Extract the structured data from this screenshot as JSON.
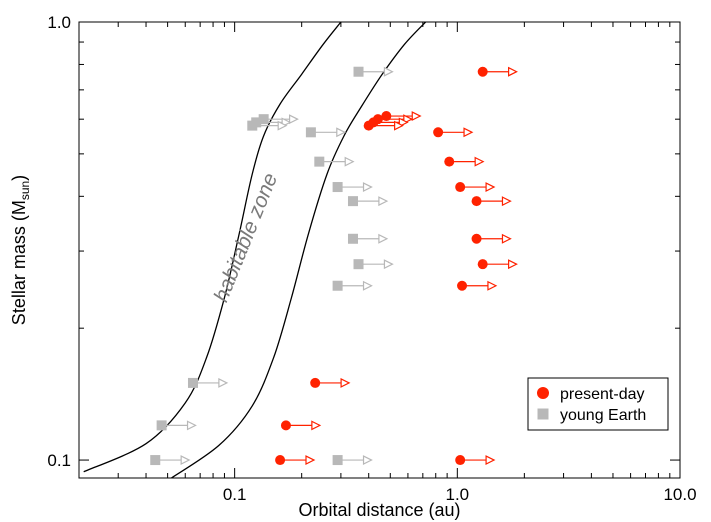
{
  "chart_data": {
    "type": "scatter",
    "xlabel": "Orbital distance (au)",
    "ylabel_main": "Stellar mass (M",
    "ylabel_sub": "sun",
    "ylabel_close": ")",
    "x_scale": "log",
    "y_scale": "log",
    "xlim": [
      0.02,
      10.0
    ],
    "ylim": [
      0.091,
      1.0
    ],
    "x_ticks": [
      0.1,
      1.0,
      10.0
    ],
    "x_tick_labels": [
      "0.1",
      "1.0",
      "10.0"
    ],
    "y_ticks": [
      0.1,
      1.0
    ],
    "y_tick_labels": [
      "0.1",
      "1.0"
    ],
    "annotation": "habitable zone",
    "legend_position": "bottom-right",
    "colors": {
      "present": "#ff2200",
      "young": "#b8b8b8",
      "curve": "#000000"
    },
    "habitable_zone": {
      "inner_edge": [
        [
          0.021,
          0.094
        ],
        [
          0.04,
          0.109
        ],
        [
          0.06,
          0.135
        ],
        [
          0.075,
          0.172
        ],
        [
          0.09,
          0.235
        ],
        [
          0.105,
          0.33
        ],
        [
          0.12,
          0.45
        ],
        [
          0.135,
          0.55
        ],
        [
          0.16,
          0.65
        ],
        [
          0.2,
          0.76
        ],
        [
          0.25,
          0.89
        ],
        [
          0.3,
          1.0
        ]
      ],
      "outer_edge": [
        [
          0.052,
          0.091
        ],
        [
          0.085,
          0.108
        ],
        [
          0.12,
          0.133
        ],
        [
          0.15,
          0.172
        ],
        [
          0.18,
          0.235
        ],
        [
          0.215,
          0.33
        ],
        [
          0.26,
          0.45
        ],
        [
          0.31,
          0.55
        ],
        [
          0.37,
          0.64
        ],
        [
          0.46,
          0.76
        ],
        [
          0.58,
          0.89
        ],
        [
          0.72,
          1.0
        ]
      ]
    },
    "series": [
      {
        "name": "present-day",
        "marker": "circle",
        "points": [
          {
            "x": 1.3,
            "y": 0.77
          },
          {
            "x": 0.48,
            "y": 0.61
          },
          {
            "x": 0.44,
            "y": 0.6
          },
          {
            "x": 0.42,
            "y": 0.59
          },
          {
            "x": 0.4,
            "y": 0.58
          },
          {
            "x": 0.82,
            "y": 0.56
          },
          {
            "x": 0.92,
            "y": 0.48
          },
          {
            "x": 1.03,
            "y": 0.42
          },
          {
            "x": 1.22,
            "y": 0.39
          },
          {
            "x": 1.22,
            "y": 0.32
          },
          {
            "x": 1.3,
            "y": 0.28
          },
          {
            "x": 1.05,
            "y": 0.25
          },
          {
            "x": 0.23,
            "y": 0.15
          },
          {
            "x": 0.17,
            "y": 0.12
          },
          {
            "x": 0.16,
            "y": 0.1
          },
          {
            "x": 1.03,
            "y": 0.1
          }
        ]
      },
      {
        "name": "young Earth",
        "marker": "square",
        "points": [
          {
            "x": 0.36,
            "y": 0.77
          },
          {
            "x": 0.135,
            "y": 0.6
          },
          {
            "x": 0.125,
            "y": 0.59
          },
          {
            "x": 0.12,
            "y": 0.58
          },
          {
            "x": 0.22,
            "y": 0.56
          },
          {
            "x": 0.24,
            "y": 0.48
          },
          {
            "x": 0.29,
            "y": 0.42
          },
          {
            "x": 0.34,
            "y": 0.39
          },
          {
            "x": 0.34,
            "y": 0.32
          },
          {
            "x": 0.36,
            "y": 0.28
          },
          {
            "x": 0.29,
            "y": 0.25
          },
          {
            "x": 0.065,
            "y": 0.15
          },
          {
            "x": 0.047,
            "y": 0.12
          },
          {
            "x": 0.044,
            "y": 0.1
          },
          {
            "x": 0.29,
            "y": 0.1
          }
        ]
      }
    ],
    "arrow_factor": 1.42
  }
}
